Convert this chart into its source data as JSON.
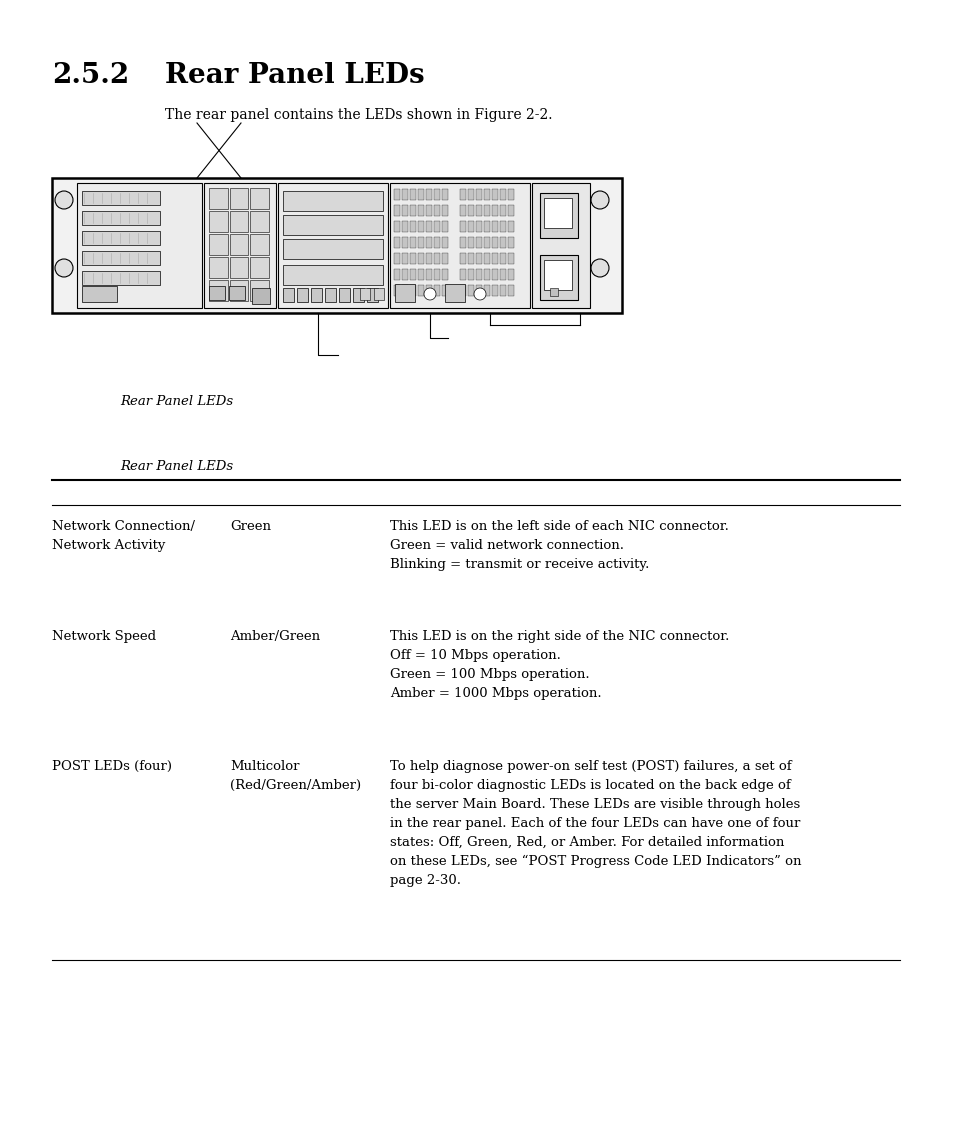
{
  "title_number": "2.5.2",
  "title_text": "Rear Panel LEDs",
  "intro_text": "The rear panel contains the LEDs shown in Figure 2-2.",
  "figure_caption": "Rear Panel LEDs",
  "table_caption": "Rear Panel LEDs",
  "bg_color": "#ffffff",
  "text_color": "#000000",
  "table_rows": [
    {
      "col1": "Network Connection/\nNetwork Activity",
      "col2": "Green",
      "col3": "This LED is on the left side of each NIC connector.\nGreen = valid network connection.\nBlinking = transmit or receive activity."
    },
    {
      "col1": "Network Speed",
      "col2": "Amber/Green",
      "col3": "This LED is on the right side of the NIC connector.\nOff = 10 Mbps operation.\nGreen = 100 Mbps operation.\nAmber = 1000 Mbps operation."
    },
    {
      "col1": "POST LEDs (four)",
      "col2": "Multicolor\n(Red/Green/Amber)",
      "col3": "To help diagnose power-on self test (POST) failures, a set of\nfour bi-color diagnostic LEDs is located on the back edge of\nthe server Main Board. These LEDs are visible through holes\nin the rear panel. Each of the four LEDs can have one of four\nstates: Off, Green, Red, or Amber. For detailed information\non these LEDs, see “POST Progress Code LED Indicators” on\npage 2-30."
    }
  ]
}
